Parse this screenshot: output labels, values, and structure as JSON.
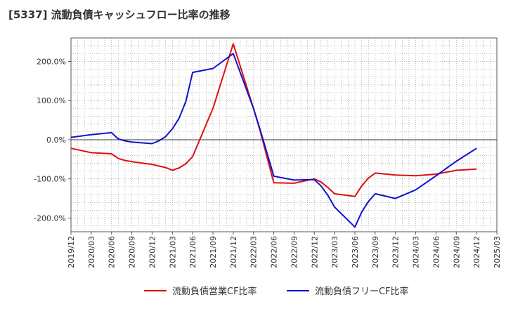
{
  "chart_data": {
    "type": "line",
    "title": "[5337]  流動負債キャッシュフロー比率の推移",
    "xlabel": "",
    "ylabel": "",
    "ylim": [
      -235,
      260
    ],
    "grid": true,
    "legend_position": "bottom",
    "y_ticks": [
      {
        "value": 200,
        "label": "200.0%"
      },
      {
        "value": 100,
        "label": "100.0%"
      },
      {
        "value": 0,
        "label": "0.0%"
      },
      {
        "value": -100,
        "label": "-100.0%"
      },
      {
        "value": -200,
        "label": "-200.0%"
      }
    ],
    "x_ticks": [
      "2019/12",
      "2020/03",
      "2020/06",
      "2020/09",
      "2020/12",
      "2021/03",
      "2021/06",
      "2021/09",
      "2021/12",
      "2022/03",
      "2022/06",
      "2022/09",
      "2022/12",
      "2023/03",
      "2023/06",
      "2023/09",
      "2023/12",
      "2024/03",
      "2024/06",
      "2024/09",
      "2024/12",
      "2025/03"
    ],
    "series": [
      {
        "name": "流動負債営業CF比率",
        "color": "#dd1111",
        "points": [
          [
            "2019/12",
            -22
          ],
          [
            "2020/03",
            -33
          ],
          [
            "2020/06",
            -36
          ],
          [
            "2020/07",
            -48
          ],
          [
            "2020/08",
            -53
          ],
          [
            "2020/09",
            -56
          ],
          [
            "2020/12",
            -63
          ],
          [
            "2021/01",
            -67
          ],
          [
            "2021/02",
            -71
          ],
          [
            "2021/03",
            -78
          ],
          [
            "2021/04",
            -72
          ],
          [
            "2021/05",
            -61
          ],
          [
            "2021/06",
            -43
          ],
          [
            "2021/09",
            80
          ],
          [
            "2021/12",
            245
          ],
          [
            "2022/03",
            80
          ],
          [
            "2022/04",
            22
          ],
          [
            "2022/06",
            -110
          ],
          [
            "2022/09",
            -111
          ],
          [
            "2022/12",
            -100
          ],
          [
            "2023/01",
            -108
          ],
          [
            "2023/02",
            -122
          ],
          [
            "2023/03",
            -138
          ],
          [
            "2023/06",
            -145
          ],
          [
            "2023/07",
            -118
          ],
          [
            "2023/08",
            -98
          ],
          [
            "2023/09",
            -85
          ],
          [
            "2023/12",
            -90
          ],
          [
            "2024/03",
            -92
          ],
          [
            "2024/06",
            -88
          ],
          [
            "2024/09",
            -78
          ],
          [
            "2024/12",
            -75
          ]
        ]
      },
      {
        "name": "流動負債フリーCF比率",
        "color": "#1111cc",
        "points": [
          [
            "2019/12",
            6
          ],
          [
            "2020/03",
            13
          ],
          [
            "2020/06",
            18
          ],
          [
            "2020/07",
            2
          ],
          [
            "2020/08",
            -3
          ],
          [
            "2020/09",
            -6
          ],
          [
            "2020/12",
            -10
          ],
          [
            "2021/01",
            -3
          ],
          [
            "2021/02",
            8
          ],
          [
            "2021/03",
            28
          ],
          [
            "2021/04",
            55
          ],
          [
            "2021/05",
            98
          ],
          [
            "2021/06",
            172
          ],
          [
            "2021/09",
            182
          ],
          [
            "2021/12",
            220
          ],
          [
            "2022/03",
            80
          ],
          [
            "2022/04",
            25
          ],
          [
            "2022/06",
            -93
          ],
          [
            "2022/09",
            -103
          ],
          [
            "2022/12",
            -102
          ],
          [
            "2023/01",
            -118
          ],
          [
            "2023/02",
            -142
          ],
          [
            "2023/03",
            -172
          ],
          [
            "2023/06",
            -223
          ],
          [
            "2023/07",
            -185
          ],
          [
            "2023/08",
            -158
          ],
          [
            "2023/09",
            -138
          ],
          [
            "2023/12",
            -150
          ],
          [
            "2024/03",
            -128
          ],
          [
            "2024/06",
            -92
          ],
          [
            "2024/09",
            -55
          ],
          [
            "2024/12",
            -22
          ]
        ]
      }
    ]
  }
}
